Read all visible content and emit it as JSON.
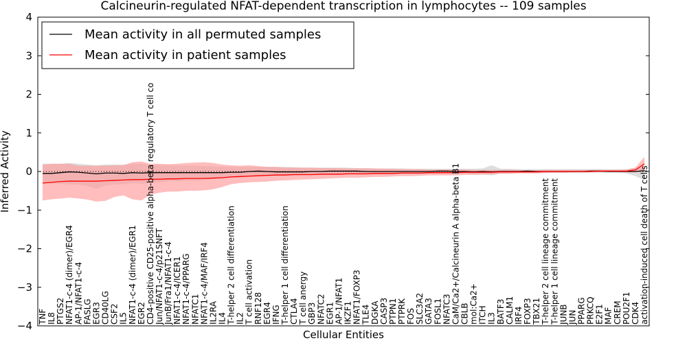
{
  "chart_data": {
    "type": "line",
    "title": "Calcineurin-regulated NFAT-dependent transcription in lymphocytes -- 109 samples",
    "xlabel": "Cellular Entities",
    "ylabel": "Inferred Activity",
    "ylim": [
      -4,
      4
    ],
    "yticks": [
      -4,
      -3,
      -2,
      -1,
      0,
      1,
      2,
      3,
      4
    ],
    "ytick_labels": [
      "−4",
      "−3",
      "−2",
      "−1",
      "0",
      "1",
      "2",
      "3",
      "4"
    ],
    "reference_line": 0,
    "legend_position": "top-left",
    "categories": [
      "TNF",
      "IL8",
      "PTGS2",
      "NFAT1-c-4 (dimer)/EGR4",
      "AP-1/NFAT1-c-4",
      "FASLG",
      "EGR3",
      "CD40LG",
      "CSF2",
      "IL5",
      "NFAT1-c-4 (dimer)/EGR1",
      "EGR2",
      "CD4-positive CD25-positive alpha-beta regulatory T cell co",
      "Jun/NFAT1-c-4/p21SNFT",
      "JunB/Fra1/NFAT1-c-4",
      "NFAT1-c-4/ICER1",
      "NFAT1-c-4/PPARG",
      "NFATC1",
      "NFAT1-c-4/MAF/IRF4",
      "IL2RA",
      "IL4",
      "T-helper 2 cell differentiation",
      "IL2",
      "T cell activation",
      "RNF128",
      "EGR4",
      "IFNG",
      "T-helper 1 cell differentiation",
      "CTLA4",
      "T cell anergy",
      "GBP3",
      "NFATC2",
      "EGR1",
      "AP-1/NFAT1",
      "IKZF1",
      "NFAT1/FOXP3",
      "TLE4",
      "DGKA",
      "CASP3",
      "PTPN1",
      "PTPRK",
      "FOS",
      "SLC3A2",
      "GATA3",
      "FOSL1",
      "NFATC3",
      "CaM/Ca2+/Calcineurin A alpha-beta B1",
      "CBLB",
      "mol:Ca2+",
      "ITCH",
      "IL3",
      "BATF3",
      "CALM1",
      "IRF4",
      "FOXP3",
      "TBX21",
      "T-helper 2 cell lineage commitment",
      "T-helper 1 cell lineage commitment",
      "JUNB",
      "JUN",
      "PPARG",
      "PRKCQ",
      "E2F1",
      "MAF",
      "CREM",
      "POU2F1",
      "CDK4",
      "activation-induced cell death of T cells"
    ],
    "series": [
      {
        "name": "Mean activity in all permuted samples",
        "color": "#000000",
        "band_color": "#bbbbbb",
        "values": [
          -0.05,
          -0.05,
          -0.03,
          -0.01,
          -0.02,
          -0.04,
          -0.06,
          -0.04,
          -0.04,
          -0.05,
          -0.03,
          -0.04,
          -0.03,
          -0.03,
          -0.03,
          -0.03,
          -0.03,
          -0.03,
          -0.03,
          -0.03,
          -0.03,
          -0.02,
          -0.02,
          0.0,
          0.01,
          0.0,
          -0.01,
          -0.01,
          -0.01,
          -0.01,
          0.0,
          0.0,
          0.01,
          0.01,
          0.01,
          0.01,
          0.0,
          0.0,
          0.0,
          0.0,
          0.0,
          0.0,
          0.0,
          0.0,
          0.01,
          0.01,
          0.0,
          0.0,
          -0.01,
          0.0,
          -0.01,
          0.0,
          0.0,
          0.0,
          0.01,
          0.0,
          0.0,
          0.0,
          0.0,
          0.0,
          0.0,
          0.01,
          0.01,
          0.0,
          0.0,
          0.0,
          0.0,
          0.02
        ],
        "lower": [
          -0.3,
          -0.32,
          -0.32,
          -0.34,
          -0.34,
          -0.38,
          -0.45,
          -0.36,
          -0.34,
          -0.33,
          -0.3,
          -0.32,
          -0.3,
          -0.28,
          -0.25,
          -0.25,
          -0.24,
          -0.24,
          -0.22,
          -0.2,
          -0.18,
          -0.16,
          -0.16,
          -0.14,
          -0.12,
          -0.12,
          -0.12,
          -0.12,
          -0.11,
          -0.1,
          -0.1,
          -0.09,
          -0.09,
          -0.09,
          -0.08,
          -0.08,
          -0.08,
          -0.07,
          -0.07,
          -0.06,
          -0.06,
          -0.06,
          -0.06,
          -0.05,
          -0.05,
          -0.05,
          -0.05,
          -0.05,
          -0.09,
          -0.07,
          -0.1,
          -0.05,
          -0.05,
          -0.04,
          -0.04,
          -0.04,
          -0.04,
          -0.04,
          -0.04,
          -0.04,
          -0.04,
          -0.03,
          -0.03,
          -0.03,
          -0.03,
          -0.05,
          -0.12,
          -0.22
        ],
        "upper": [
          0.2,
          0.2,
          0.2,
          0.22,
          0.2,
          0.18,
          0.16,
          0.18,
          0.18,
          0.18,
          0.2,
          0.2,
          0.18,
          0.17,
          0.16,
          0.16,
          0.15,
          0.15,
          0.14,
          0.13,
          0.13,
          0.12,
          0.12,
          0.12,
          0.12,
          0.12,
          0.12,
          0.12,
          0.11,
          0.1,
          0.1,
          0.1,
          0.1,
          0.1,
          0.1,
          0.09,
          0.09,
          0.08,
          0.08,
          0.08,
          0.08,
          0.07,
          0.07,
          0.07,
          0.07,
          0.07,
          0.07,
          0.07,
          0.07,
          0.08,
          0.16,
          0.07,
          0.07,
          0.06,
          0.06,
          0.06,
          0.06,
          0.06,
          0.06,
          0.06,
          0.06,
          0.06,
          0.06,
          0.06,
          0.06,
          0.06,
          0.1,
          0.16
        ]
      },
      {
        "name": "Mean activity in patient samples",
        "color": "#ff0000",
        "band_color": "#ff9999",
        "values": [
          -0.3,
          -0.28,
          -0.26,
          -0.25,
          -0.25,
          -0.25,
          -0.25,
          -0.24,
          -0.23,
          -0.22,
          -0.21,
          -0.21,
          -0.2,
          -0.2,
          -0.19,
          -0.19,
          -0.18,
          -0.18,
          -0.18,
          -0.17,
          -0.16,
          -0.14,
          -0.13,
          -0.12,
          -0.11,
          -0.1,
          -0.09,
          -0.09,
          -0.08,
          -0.08,
          -0.08,
          -0.07,
          -0.07,
          -0.07,
          -0.06,
          -0.06,
          -0.06,
          -0.05,
          -0.05,
          -0.05,
          -0.04,
          -0.04,
          -0.04,
          -0.03,
          -0.03,
          -0.03,
          -0.03,
          -0.02,
          -0.02,
          -0.02,
          -0.02,
          -0.01,
          -0.01,
          -0.01,
          -0.01,
          -0.01,
          0.0,
          0.0,
          0.0,
          0.0,
          0.0,
          0.0,
          0.01,
          0.01,
          0.01,
          0.01,
          0.04,
          0.2
        ],
        "lower": [
          -0.75,
          -0.72,
          -0.7,
          -0.68,
          -0.7,
          -0.73,
          -0.78,
          -0.76,
          -0.66,
          -0.62,
          -0.72,
          -0.75,
          -0.6,
          -0.55,
          -0.52,
          -0.52,
          -0.5,
          -0.5,
          -0.49,
          -0.46,
          -0.4,
          -0.33,
          -0.3,
          -0.28,
          -0.27,
          -0.26,
          -0.24,
          -0.23,
          -0.22,
          -0.21,
          -0.2,
          -0.19,
          -0.18,
          -0.17,
          -0.16,
          -0.16,
          -0.15,
          -0.14,
          -0.14,
          -0.13,
          -0.12,
          -0.12,
          -0.11,
          -0.1,
          -0.1,
          -0.1,
          -0.1,
          -0.09,
          -0.08,
          -0.08,
          -0.07,
          -0.06,
          -0.06,
          -0.05,
          -0.05,
          -0.05,
          -0.04,
          -0.03,
          -0.03,
          -0.02,
          -0.02,
          -0.02,
          -0.01,
          -0.01,
          -0.01,
          -0.02,
          -0.02,
          0.02
        ],
        "upper": [
          0.18,
          0.2,
          0.2,
          0.2,
          0.15,
          0.15,
          0.15,
          0.15,
          0.16,
          0.16,
          0.24,
          0.26,
          0.2,
          0.2,
          0.19,
          0.2,
          0.22,
          0.23,
          0.24,
          0.22,
          0.18,
          0.16,
          0.15,
          0.16,
          0.14,
          0.12,
          0.12,
          0.1,
          0.1,
          0.1,
          0.1,
          0.09,
          0.09,
          0.09,
          0.08,
          0.08,
          0.08,
          0.08,
          0.07,
          0.07,
          0.06,
          0.06,
          0.06,
          0.05,
          0.05,
          0.05,
          0.05,
          0.05,
          0.04,
          0.04,
          0.04,
          0.04,
          0.04,
          0.04,
          0.03,
          0.03,
          0.04,
          0.04,
          0.04,
          0.04,
          0.04,
          0.04,
          0.04,
          0.04,
          0.04,
          0.05,
          0.1,
          0.38
        ]
      }
    ]
  }
}
